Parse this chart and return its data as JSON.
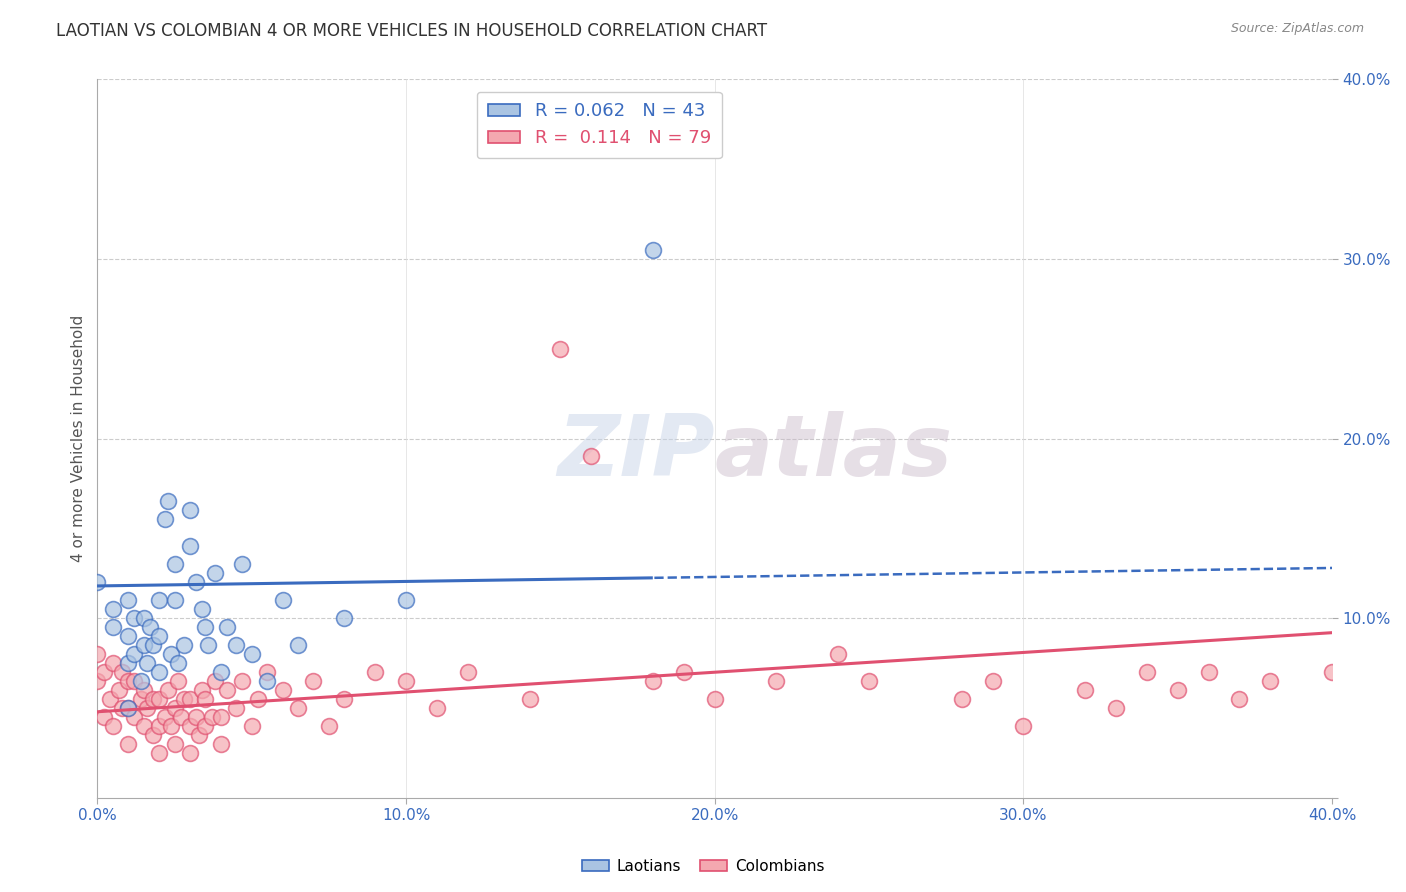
{
  "title": "LAOTIAN VS COLOMBIAN 4 OR MORE VEHICLES IN HOUSEHOLD CORRELATION CHART",
  "source": "Source: ZipAtlas.com",
  "ylabel": "4 or more Vehicles in Household",
  "xlim": [
    0.0,
    0.4
  ],
  "ylim": [
    0.0,
    0.4
  ],
  "xticks": [
    0.0,
    0.1,
    0.2,
    0.3,
    0.4
  ],
  "yticks": [
    0.0,
    0.1,
    0.2,
    0.3,
    0.4
  ],
  "xtick_labels": [
    "0.0%",
    "10.0%",
    "20.0%",
    "30.0%",
    "40.0%"
  ],
  "ytick_labels": [
    "",
    "10.0%",
    "20.0%",
    "30.0%",
    "40.0%"
  ],
  "grid_ticks": [
    0.1,
    0.2,
    0.3,
    0.4
  ],
  "laotian_color": "#aac4e2",
  "colombian_color": "#f4a8b0",
  "laotian_line_color": "#3a6bbf",
  "colombian_line_color": "#e05070",
  "laotian_R": 0.062,
  "laotian_N": 43,
  "colombian_R": 0.114,
  "colombian_N": 79,
  "background_color": "#ffffff",
  "watermark_text": "ZIPatlas",
  "laotian_x": [
    0.0,
    0.005,
    0.005,
    0.01,
    0.01,
    0.01,
    0.01,
    0.012,
    0.012,
    0.014,
    0.015,
    0.015,
    0.016,
    0.017,
    0.018,
    0.02,
    0.02,
    0.02,
    0.022,
    0.023,
    0.024,
    0.025,
    0.025,
    0.026,
    0.028,
    0.03,
    0.03,
    0.032,
    0.034,
    0.035,
    0.036,
    0.038,
    0.04,
    0.042,
    0.045,
    0.047,
    0.05,
    0.055,
    0.06,
    0.065,
    0.08,
    0.1,
    0.18
  ],
  "laotian_y": [
    0.12,
    0.095,
    0.105,
    0.05,
    0.075,
    0.09,
    0.11,
    0.08,
    0.1,
    0.065,
    0.085,
    0.1,
    0.075,
    0.095,
    0.085,
    0.07,
    0.09,
    0.11,
    0.155,
    0.165,
    0.08,
    0.11,
    0.13,
    0.075,
    0.085,
    0.14,
    0.16,
    0.12,
    0.105,
    0.095,
    0.085,
    0.125,
    0.07,
    0.095,
    0.085,
    0.13,
    0.08,
    0.065,
    0.11,
    0.085,
    0.1,
    0.11,
    0.305
  ],
  "colombian_x": [
    0.0,
    0.0,
    0.002,
    0.002,
    0.004,
    0.005,
    0.005,
    0.007,
    0.008,
    0.008,
    0.01,
    0.01,
    0.01,
    0.012,
    0.012,
    0.014,
    0.015,
    0.015,
    0.016,
    0.018,
    0.018,
    0.02,
    0.02,
    0.02,
    0.022,
    0.023,
    0.024,
    0.025,
    0.025,
    0.026,
    0.027,
    0.028,
    0.03,
    0.03,
    0.03,
    0.032,
    0.033,
    0.034,
    0.035,
    0.035,
    0.037,
    0.038,
    0.04,
    0.04,
    0.042,
    0.045,
    0.047,
    0.05,
    0.052,
    0.055,
    0.06,
    0.065,
    0.07,
    0.075,
    0.08,
    0.09,
    0.1,
    0.11,
    0.12,
    0.14,
    0.15,
    0.16,
    0.18,
    0.19,
    0.2,
    0.22,
    0.24,
    0.25,
    0.28,
    0.29,
    0.3,
    0.32,
    0.33,
    0.34,
    0.35,
    0.36,
    0.37,
    0.38,
    0.4
  ],
  "colombian_y": [
    0.065,
    0.08,
    0.045,
    0.07,
    0.055,
    0.04,
    0.075,
    0.06,
    0.05,
    0.07,
    0.03,
    0.05,
    0.065,
    0.045,
    0.065,
    0.055,
    0.04,
    0.06,
    0.05,
    0.035,
    0.055,
    0.025,
    0.04,
    0.055,
    0.045,
    0.06,
    0.04,
    0.03,
    0.05,
    0.065,
    0.045,
    0.055,
    0.025,
    0.04,
    0.055,
    0.045,
    0.035,
    0.06,
    0.04,
    0.055,
    0.045,
    0.065,
    0.03,
    0.045,
    0.06,
    0.05,
    0.065,
    0.04,
    0.055,
    0.07,
    0.06,
    0.05,
    0.065,
    0.04,
    0.055,
    0.07,
    0.065,
    0.05,
    0.07,
    0.055,
    0.25,
    0.19,
    0.065,
    0.07,
    0.055,
    0.065,
    0.08,
    0.065,
    0.055,
    0.065,
    0.04,
    0.06,
    0.05,
    0.07,
    0.06,
    0.07,
    0.055,
    0.065,
    0.07
  ],
  "title_fontsize": 12,
  "label_fontsize": 11,
  "tick_fontsize": 11,
  "legend_fontsize": 13,
  "lao_line_start": 0.0,
  "lao_line_end_solid": 0.18,
  "lao_line_end": 0.4,
  "lao_intercept": 0.118,
  "lao_slope": 0.025,
  "col_intercept": 0.048,
  "col_slope": 0.11
}
